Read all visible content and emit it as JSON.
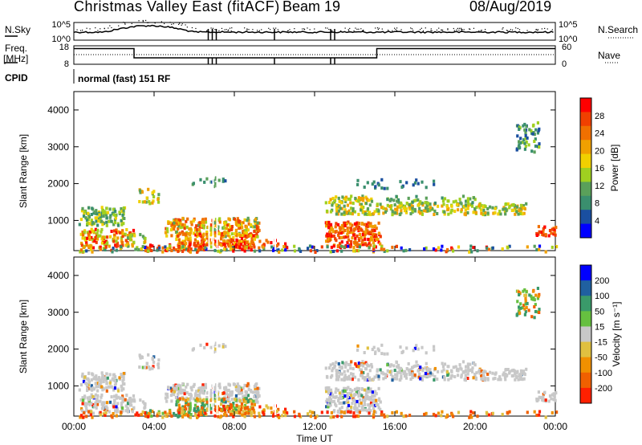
{
  "header": {
    "title": "Christmas Valley East (fitACF)",
    "beam": "Beam 19",
    "date": "08/Aug/2019"
  },
  "left_labels": {
    "nsky": "N.Sky",
    "freq": "Freq.",
    "freq_unit": "[MHz]",
    "cpid": "CPID"
  },
  "right_labels": {
    "nsearch": "N.Search",
    "nave": "Nave"
  },
  "cpid_text": "normal (fast) 151 RF",
  "colors": {
    "power_scale": [
      "#0000ff",
      "#1a4fa0",
      "#3a8f6e",
      "#5aa05a",
      "#9fd020",
      "#f0d000",
      "#f0a000",
      "#f07000",
      "#f04000",
      "#ff0000"
    ],
    "velocity_scale": [
      "#0000ff",
      "#2060a0",
      "#3a9a6a",
      "#66c040",
      "#c8c8c8",
      "#e0c040",
      "#f09000",
      "#f06000",
      "#ff2000"
    ],
    "ground_scatter": "#c8c8c8"
  },
  "chart_data": [
    {
      "type": "line",
      "name": "noise-panel",
      "left_axis": {
        "label": "N.Sky",
        "ticks": [
          "10^5",
          "10^0"
        ]
      },
      "right_axis": {
        "label": "N.Search",
        "ticks": [
          "10^5",
          "10^0"
        ]
      }
    },
    {
      "type": "line",
      "name": "frequency-panel",
      "left_axis": {
        "label": "Freq. [MHz]",
        "ticks": [
          "18",
          "8"
        ],
        "ylim": [
          8,
          18
        ]
      },
      "right_axis": {
        "label": "Nave",
        "ticks": [
          "60",
          "0"
        ],
        "ylim": [
          0,
          60
        ]
      },
      "freq_series": {
        "x_hours": [
          0,
          3,
          3,
          15.1,
          15.1,
          24
        ],
        "values": [
          16.5,
          16.5,
          11.5,
          11.5,
          16.5,
          16.5
        ]
      }
    },
    {
      "type": "heatmap",
      "name": "power-panel",
      "ylabel": "Slant Range [km]",
      "ylim": [
        180,
        4500
      ],
      "yticks": [
        1000,
        2000,
        3000,
        4000
      ],
      "xlim": [
        0,
        24
      ],
      "colorbar": {
        "label": "Power [dB]",
        "ticks": [
          4,
          8,
          12,
          16,
          20,
          24,
          28
        ]
      }
    },
    {
      "type": "heatmap",
      "name": "velocity-panel",
      "ylabel": "Slant Range [km]",
      "xlabel": "Time UT",
      "ylim": [
        180,
        4500
      ],
      "yticks": [
        1000,
        2000,
        3000,
        4000
      ],
      "xticks": [
        "00:00",
        "04:00",
        "08:00",
        "12:00",
        "16:00",
        "20:00",
        "00:00"
      ],
      "xlim": [
        0,
        24
      ],
      "colorbar": {
        "label": "Velocity [m s⁻¹]",
        "ticks": [
          200,
          100,
          50,
          15,
          -15,
          -50,
          -100,
          -200
        ]
      }
    }
  ]
}
